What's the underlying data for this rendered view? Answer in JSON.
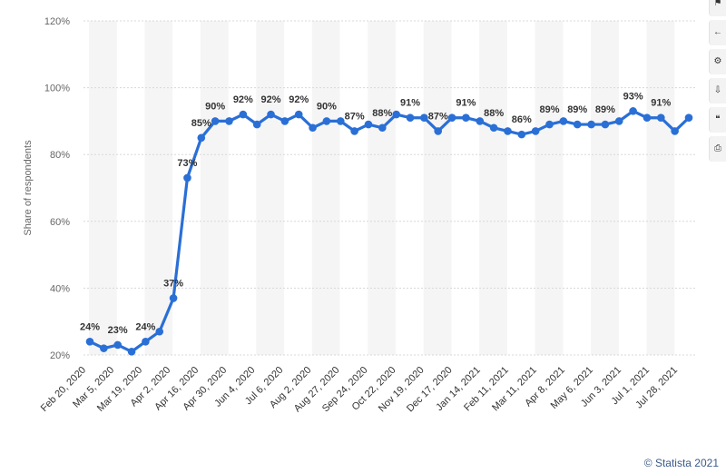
{
  "chart_data": {
    "type": "line",
    "ylabel": "Share of respondents",
    "ylim": [
      20,
      120
    ],
    "yticks": [
      20,
      40,
      60,
      80,
      100,
      120
    ],
    "ytick_suffix": "%",
    "grid": true,
    "color": "#2a6fd6",
    "x_tick_labels": [
      "Feb 20, 2020",
      "Mar 5, 2020",
      "Mar 19, 2020",
      "Apr 2, 2020",
      "Apr 16, 2020",
      "Apr 30, 2020",
      "Jun 4, 2020",
      "Jul 6, 2020",
      "Aug 2, 2020",
      "Aug 27, 2020",
      "Sep 24, 2020",
      "Oct 22, 2020",
      "Nov 19, 2020",
      "Dec 17, 2020",
      "Jan 14, 2021",
      "Feb 11, 2021",
      "Mar 11, 2021",
      "Apr 8, 2021",
      "May 6, 2021",
      "Jun 3, 2021",
      "Jul 1, 2021",
      "Jul 28, 2021"
    ],
    "values": [
      24,
      22,
      23,
      21,
      24,
      27,
      37,
      73,
      85,
      90,
      90,
      92,
      89,
      92,
      90,
      92,
      88,
      90,
      90,
      87,
      89,
      88,
      92,
      91,
      91,
      87,
      91,
      91,
      90,
      88,
      87,
      86,
      87,
      89,
      90,
      89,
      89,
      89,
      90,
      93,
      91,
      91,
      87,
      91
    ],
    "data_labels": [
      {
        "index": 0,
        "text": "24%"
      },
      {
        "index": 2,
        "text": "23%"
      },
      {
        "index": 4,
        "text": "24%"
      },
      {
        "index": 6,
        "text": "37%"
      },
      {
        "index": 7,
        "text": "73%"
      },
      {
        "index": 8,
        "text": "85%"
      },
      {
        "index": 9,
        "text": "90%"
      },
      {
        "index": 11,
        "text": "92%"
      },
      {
        "index": 13,
        "text": "92%"
      },
      {
        "index": 15,
        "text": "92%"
      },
      {
        "index": 17,
        "text": "90%"
      },
      {
        "index": 19,
        "text": "87%"
      },
      {
        "index": 21,
        "text": "88%"
      },
      {
        "index": 23,
        "text": "91%"
      },
      {
        "index": 25,
        "text": "87%"
      },
      {
        "index": 27,
        "text": "91%"
      },
      {
        "index": 29,
        "text": "88%"
      },
      {
        "index": 31,
        "text": "86%"
      },
      {
        "index": 33,
        "text": "89%"
      },
      {
        "index": 35,
        "text": "89%"
      },
      {
        "index": 37,
        "text": "89%"
      },
      {
        "index": 39,
        "text": "93%"
      },
      {
        "index": 41,
        "text": "91%"
      }
    ]
  },
  "credit": "© Statista 2021"
}
